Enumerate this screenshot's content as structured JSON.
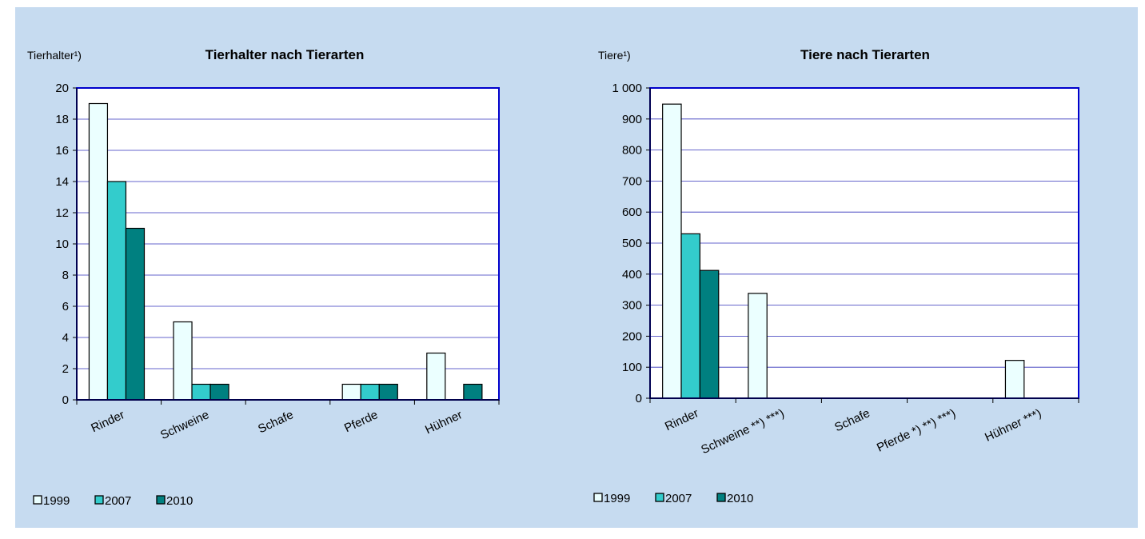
{
  "colors": {
    "background": "#c6dbf0",
    "plot_bg": "#ffffff",
    "plot_border": "#0000cc",
    "gridline": "#3333bb",
    "s1999": "#ebffff",
    "s2007": "#33cccc",
    "s2010": "#008080"
  },
  "legend": {
    "placement": "bottom-left"
  },
  "chart_data": [
    {
      "type": "bar",
      "title": "Tierhalter nach Tierarten",
      "unit_label": "Tierhalter¹)",
      "categories": [
        "Rinder",
        "Schweine",
        "Schafe",
        "Pferde",
        "Hühner"
      ],
      "series": [
        {
          "name": "1999",
          "values": [
            19,
            5,
            0,
            1,
            3
          ]
        },
        {
          "name": "2007",
          "values": [
            14,
            1,
            0,
            1,
            0
          ]
        },
        {
          "name": "2010",
          "values": [
            11,
            1,
            0,
            1,
            1
          ]
        }
      ],
      "ylim": [
        0,
        20
      ],
      "yticks": [
        0,
        2,
        4,
        6,
        8,
        10,
        12,
        14,
        16,
        18,
        20
      ],
      "ytick_labels": [
        "0",
        "2",
        "4",
        "6",
        "8",
        "10",
        "12",
        "14",
        "16",
        "18",
        "20"
      ],
      "grid": true
    },
    {
      "type": "bar",
      "title": "Tiere nach Tierarten",
      "unit_label": "Tiere¹)",
      "categories": [
        "Rinder",
        "Schweine **) ***)",
        "Schafe",
        "Pferde *) **) ***)",
        "Hühner ***)"
      ],
      "series": [
        {
          "name": "1999",
          "values": [
            948,
            338,
            0,
            0,
            122
          ]
        },
        {
          "name": "2007",
          "values": [
            530,
            0,
            0,
            0,
            0
          ]
        },
        {
          "name": "2010",
          "values": [
            412,
            0,
            0,
            0,
            0
          ]
        }
      ],
      "ylim": [
        0,
        1000
      ],
      "yticks": [
        0,
        100,
        200,
        300,
        400,
        500,
        600,
        700,
        800,
        900,
        1000
      ],
      "ytick_labels": [
        "0",
        "100",
        "200",
        "300",
        "400",
        "500",
        "600",
        "700",
        "800",
        "900",
        "1 000"
      ],
      "grid": true
    }
  ]
}
